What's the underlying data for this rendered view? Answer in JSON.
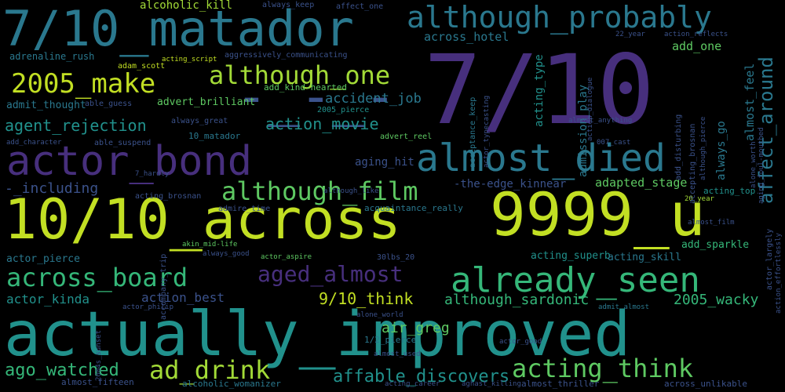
{
  "palette": {
    "yellow": "#c2df23",
    "lime": "#a2da37",
    "green": "#5ec962",
    "teal_green": "#35b779",
    "teal": "#21918c",
    "teal_dark": "#2a788e",
    "blue": "#3b528b",
    "purple": "#472f7d",
    "purple_dark": "#440154",
    "background": "#000000"
  },
  "words": [
    {
      "id": "w1",
      "text": "actually_improved",
      "color": "#21918c"
    },
    {
      "id": "w2",
      "text": "7/10",
      "color": "#472f7d"
    },
    {
      "id": "w3",
      "text": "10/10_across",
      "color": "#c2df23"
    },
    {
      "id": "w4",
      "text": "9999_u",
      "color": "#c2df23"
    },
    {
      "id": "w5",
      "text": "7/10_matador",
      "color": "#2a788e"
    },
    {
      "id": "w6",
      "text": "-_-_-",
      "color": "#3b528b"
    },
    {
      "id": "w7",
      "text": "actor_bond",
      "color": "#472f7d"
    },
    {
      "id": "w8",
      "text": "almost_died",
      "color": "#2a788e"
    },
    {
      "id": "w9",
      "text": "although_probably",
      "color": "#2a788e"
    },
    {
      "id": "w10",
      "text": "already_seen",
      "color": "#35b779"
    },
    {
      "id": "w11",
      "text": "2005_make",
      "color": "#c2df23"
    },
    {
      "id": "w12",
      "text": "although_one",
      "color": "#a2da37"
    },
    {
      "id": "w13",
      "text": "although_film",
      "color": "#5ec962"
    },
    {
      "id": "w14",
      "text": "across_board",
      "color": "#35b779"
    },
    {
      "id": "w15",
      "text": "aged_almost",
      "color": "#472f7d"
    },
    {
      "id": "w16",
      "text": "acting_think",
      "color": "#5ec962"
    },
    {
      "id": "w17",
      "text": "ad_drink",
      "color": "#a2da37"
    },
    {
      "id": "w18",
      "text": "ago_watched",
      "color": "#35b779"
    },
    {
      "id": "w19",
      "text": "affable_discovers",
      "color": "#21918c"
    },
    {
      "id": "w20",
      "text": "affect_around",
      "color": "#2a788e"
    },
    {
      "id": "w21",
      "text": "agent_rejection",
      "color": "#21918c"
    },
    {
      "id": "w22",
      "text": "action_movie",
      "color": "#21918c"
    },
    {
      "id": "w23",
      "text": "accident_job",
      "color": "#2a788e"
    },
    {
      "id": "w24",
      "text": "9/10_think",
      "color": "#c2df23"
    },
    {
      "id": "w25",
      "text": "although_sardonic",
      "color": "#35b779"
    },
    {
      "id": "w26",
      "text": "2005_wacky",
      "color": "#35b779"
    },
    {
      "id": "w27",
      "text": "air_greg",
      "color": "#5ec962"
    },
    {
      "id": "w28",
      "text": "alcoholic_kill",
      "color": "#a2da37"
    },
    {
      "id": "w29",
      "text": "across_hotel",
      "color": "#2a788e"
    },
    {
      "id": "w30",
      "text": "add_one",
      "color": "#5ec962"
    },
    {
      "id": "w31",
      "text": "almost_feel",
      "color": "#2a788e"
    },
    {
      "id": "w32",
      "text": "acting_type",
      "color": "#21918c"
    },
    {
      "id": "w33",
      "text": "admission_play",
      "color": "#2a788e"
    },
    {
      "id": "w34",
      "text": "adrenaline_rush",
      "color": "#2a788e"
    },
    {
      "id": "w35",
      "text": "adam_scott",
      "color": "#c2df23"
    },
    {
      "id": "w36",
      "text": "aggressively_communicating",
      "color": "#3b528b"
    },
    {
      "id": "w37",
      "text": "acting_script",
      "color": "#c2df23"
    },
    {
      "id": "w38",
      "text": "admit_thought",
      "color": "#2a788e"
    },
    {
      "id": "w39",
      "text": "able_guess",
      "color": "#3b528b"
    },
    {
      "id": "w40",
      "text": "advert_brilliant",
      "color": "#5ec962"
    },
    {
      "id": "w41",
      "text": "add_kind-hearted",
      "color": "#5ec962"
    },
    {
      "id": "w42",
      "text": "2005_pierce",
      "color": "#21918c"
    },
    {
      "id": "w43",
      "text": "always_great",
      "color": "#3b528b"
    },
    {
      "id": "w44",
      "text": "add_character",
      "color": "#3b528b"
    },
    {
      "id": "w45",
      "text": "able_suspend",
      "color": "#3b528b"
    },
    {
      "id": "w46",
      "text": "10_matador",
      "color": "#2a788e"
    },
    {
      "id": "w47",
      "text": "advert_reel",
      "color": "#5ec962"
    },
    {
      "id": "w48",
      "text": "aging_hit",
      "color": "#3b528b"
    },
    {
      "id": "w49",
      "text": "-_including",
      "color": "#3b528b"
    },
    {
      "id": "w50",
      "text": "-the-edge_kinnear",
      "color": "#3b528b"
    },
    {
      "id": "w51",
      "text": "adapted_stage",
      "color": "#5ec962"
    },
    {
      "id": "w52",
      "text": "acting_top",
      "color": "#21918c"
    },
    {
      "id": "w53",
      "text": "acting_brosnan",
      "color": "#3b528b"
    },
    {
      "id": "w54",
      "text": "although_like",
      "color": "#3b528b"
    },
    {
      "id": "w55",
      "text": "admire_time",
      "color": "#3b528b"
    },
    {
      "id": "w56",
      "text": "acquaintance_really",
      "color": "#2a788e"
    },
    {
      "id": "w57",
      "text": "20_year",
      "color": "#a2da37"
    },
    {
      "id": "w58",
      "text": "almost_film",
      "color": "#3b528b"
    },
    {
      "id": "w59",
      "text": "accompany_trip",
      "color": "#3b528b"
    },
    {
      "id": "w60",
      "text": "actor_pierce",
      "color": "#2a788e"
    },
    {
      "id": "w61",
      "text": "akin_mid-life",
      "color": "#5ec962"
    },
    {
      "id": "w62",
      "text": "always_good",
      "color": "#3b528b"
    },
    {
      "id": "w63",
      "text": "actor_aspire",
      "color": "#5ec962"
    },
    {
      "id": "w64",
      "text": "acting_superb",
      "color": "#21918c"
    },
    {
      "id": "w65",
      "text": "acting_skill",
      "color": "#2a788e"
    },
    {
      "id": "w66",
      "text": "add_sparkle",
      "color": "#35b779"
    },
    {
      "id": "w67",
      "text": "30lbs_20",
      "color": "#3b528b"
    },
    {
      "id": "w68",
      "text": "actor_kinda",
      "color": "#21918c"
    },
    {
      "id": "w69",
      "text": "action_best",
      "color": "#3b528b"
    },
    {
      "id": "w70",
      "text": "actor_philip",
      "color": "#3b528b"
    },
    {
      "id": "w71",
      "text": "alone_world",
      "color": "#3b528b"
    },
    {
      "id": "w72",
      "text": "admit_almost",
      "color": "#2a788e"
    },
    {
      "id": "w73",
      "text": "1/2_pierce",
      "color": "#2a788e"
    },
    {
      "id": "w74",
      "text": "almost_used",
      "color": "#3b528b"
    },
    {
      "id": "w75",
      "text": "actor_good",
      "color": "#3b528b"
    },
    {
      "id": "w76",
      "text": "2004s_sunset",
      "color": "#3b528b"
    },
    {
      "id": "w77",
      "text": "almost_fifteen",
      "color": "#3b528b"
    },
    {
      "id": "w78",
      "text": "alcoholic_womanizer",
      "color": "#2a788e"
    },
    {
      "id": "w79",
      "text": "acting_career",
      "color": "#3b528b"
    },
    {
      "id": "w80",
      "text": "aghast_killing",
      "color": "#3b528b"
    },
    {
      "id": "w81",
      "text": "almost_thriller",
      "color": "#3b528b"
    },
    {
      "id": "w82",
      "text": "across_unlikable",
      "color": "#3b528b"
    },
    {
      "id": "w83",
      "text": "always_keep",
      "color": "#3b528b"
    },
    {
      "id": "w84",
      "text": "affect_one",
      "color": "#3b528b"
    },
    {
      "id": "w85",
      "text": "action_reflects",
      "color": "#3b528b"
    },
    {
      "id": "w86",
      "text": "22_year",
      "color": "#3b528b"
    },
    {
      "id": "w87",
      "text": "acceptance_keep",
      "color": "#2a788e"
    },
    {
      "id": "w88",
      "text": "actor_typecasting",
      "color": "#3b528b"
    },
    {
      "id": "w89",
      "text": "action_dialogue",
      "color": "#3b528b"
    },
    {
      "id": "w90",
      "text": "almost_anything",
      "color": "#3b528b"
    },
    {
      "id": "w91",
      "text": "007_cast",
      "color": "#3b528b"
    },
    {
      "id": "w92",
      "text": "add_disturbing",
      "color": "#3b528b"
    },
    {
      "id": "w93",
      "text": "accepting_brosnan",
      "color": "#3b528b"
    },
    {
      "id": "w94",
      "text": "although_pierce",
      "color": "#3b528b"
    },
    {
      "id": "w95",
      "text": "always_go",
      "color": "#2a788e"
    },
    {
      "id": "w96",
      "text": "alone_worth",
      "color": "#3b528b"
    },
    {
      "id": "w97",
      "text": "aging_foul-mouthed",
      "color": "#3b528b"
    },
    {
      "id": "w98",
      "text": "actor_largely",
      "color": "#3b528b"
    },
    {
      "id": "w99",
      "text": "action_effortlessly",
      "color": "#3b528b"
    },
    {
      "id": "w100",
      "text": "7_hardly",
      "color": "#3b528b"
    }
  ]
}
